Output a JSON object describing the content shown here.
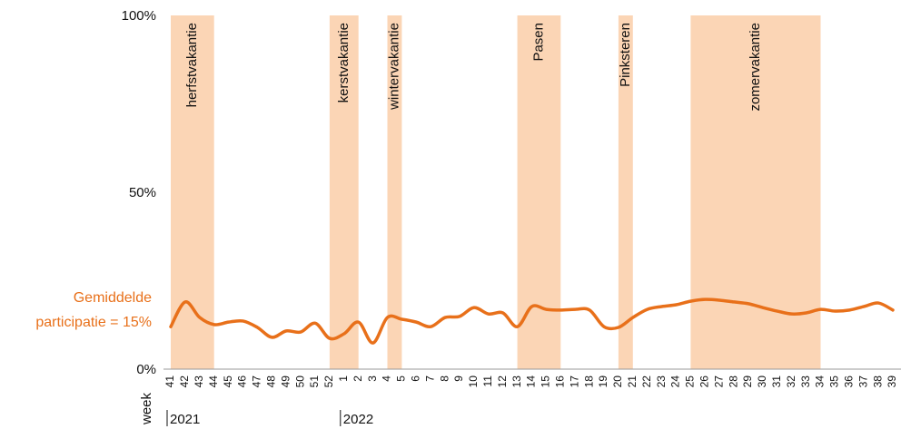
{
  "chart_data": {
    "type": "line",
    "x_label": "week",
    "categories": [
      "41",
      "42",
      "43",
      "44",
      "45",
      "46",
      "47",
      "48",
      "49",
      "50",
      "51",
      "52",
      "1",
      "2",
      "3",
      "4",
      "5",
      "6",
      "7",
      "8",
      "9",
      "10",
      "11",
      "12",
      "13",
      "14",
      "15",
      "16",
      "17",
      "18",
      "19",
      "20",
      "21",
      "22",
      "23",
      "24",
      "25",
      "26",
      "27",
      "28",
      "29",
      "30",
      "31",
      "32",
      "33",
      "34",
      "35",
      "36",
      "37",
      "38",
      "39"
    ],
    "series": [
      {
        "color": "#e8701a",
        "values": [
          12,
          19,
          14.6,
          12.6,
          13.3,
          13.6,
          11.8,
          9,
          10.8,
          10.5,
          13,
          8.7,
          10,
          13.3,
          7.4,
          14.6,
          14.1,
          13.3,
          12,
          14.6,
          14.9,
          17.4,
          15.6,
          15.9,
          12,
          17.7,
          16.9,
          16.7,
          16.9,
          16.7,
          12,
          11.8,
          14.6,
          16.9,
          17.7,
          18.2,
          19.2,
          19.7,
          19.5,
          19,
          18.5,
          17.4,
          16.4,
          15.6,
          15.9,
          16.9,
          16.4,
          16.7,
          17.7,
          18.7,
          16.7
        ]
      }
    ],
    "ylim": [
      0,
      100
    ],
    "yticks": [
      {
        "value": 0,
        "label": "0%"
      },
      {
        "value": 50,
        "label": "50%"
      },
      {
        "value": 100,
        "label": "100%"
      }
    ],
    "bands": [
      {
        "label": "herfstvakantie",
        "start": "41",
        "end": "44"
      },
      {
        "label": "kerstvakantie",
        "start": "52",
        "end": "2"
      },
      {
        "label": "wintervakantie",
        "start": "4",
        "end": "5"
      },
      {
        "label": "Pasen",
        "start": "13",
        "end": "16"
      },
      {
        "label": "Pinksteren",
        "start": "20",
        "end": "21"
      },
      {
        "label": "zomervakantie",
        "start": "25",
        "end": "34"
      }
    ],
    "band_color": "#fbd5b5",
    "years": [
      {
        "label": "2021",
        "at": "41"
      },
      {
        "label": "2022",
        "at": "1"
      }
    ],
    "annotation": [
      "Gemiddelde",
      "participatie = 15%"
    ]
  }
}
